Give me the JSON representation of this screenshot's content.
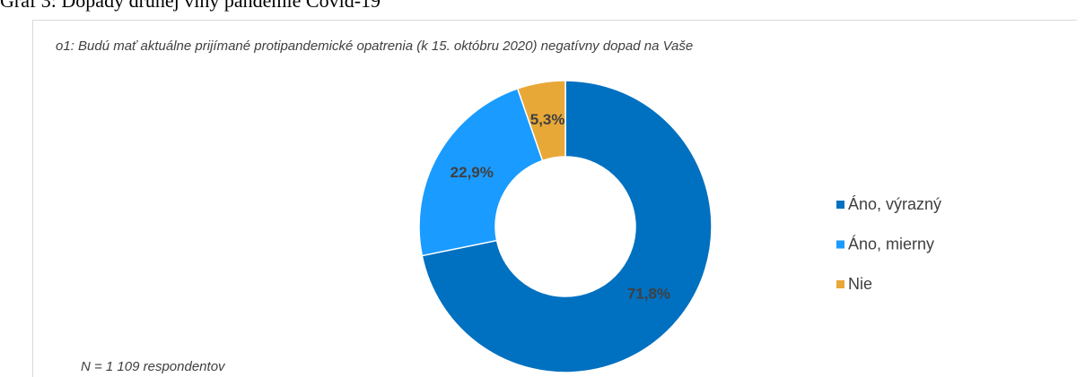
{
  "heading": "Graf 3: Dopady druhej vlny pandémie Covid-19",
  "chart_data": {
    "type": "donut",
    "title": "o1: Budú mať aktuálne prijímané protipandemické opatrenia (k 15. októbru 2020) negatívny dopad na Vaše",
    "categories": [
      "Áno, výrazný",
      "Áno, mierny",
      "Nie"
    ],
    "values": [
      71.8,
      22.9,
      5.3
    ],
    "value_labels": [
      "71,8%",
      "22,9%",
      "5,3%"
    ],
    "colors": [
      "#0070c0",
      "#1a9bff",
      "#e8a838"
    ],
    "legend": "right",
    "note": "N = 1 109 respondentov"
  }
}
